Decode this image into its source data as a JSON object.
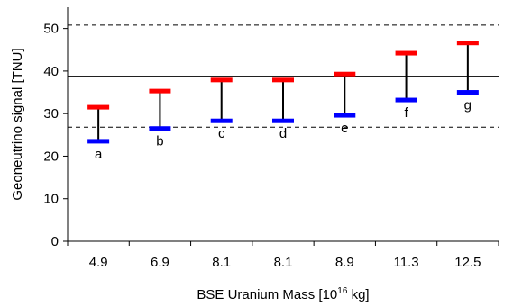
{
  "chart_data": {
    "type": "range-bar",
    "ylabel": "Geoneutrino signal [TNU]",
    "xlabel_parts": {
      "pre": "BSE Uranium Mass [10",
      "sup": "16",
      "post": " kg]"
    },
    "ylim": [
      0,
      55
    ],
    "yticks": [
      "0",
      "10",
      "20",
      "30",
      "40",
      "50"
    ],
    "categories": [
      "4.9",
      "6.9",
      "8.1",
      "8.1",
      "8.9",
      "11.3",
      "12.5"
    ],
    "labels": [
      "a",
      "b",
      "c",
      "d",
      "e",
      "f",
      "g"
    ],
    "low": [
      23.5,
      26.5,
      28.3,
      28.3,
      29.6,
      33.2,
      35.0
    ],
    "high": [
      31.5,
      35.3,
      37.9,
      37.9,
      39.3,
      44.2,
      46.6
    ],
    "reference_lines": [
      {
        "value": 38.8,
        "style": "solid"
      },
      {
        "value": 50.8,
        "style": "dashed"
      },
      {
        "value": 26.8,
        "style": "dashed"
      }
    ],
    "colors": {
      "high": "#ff0000",
      "low": "#0000ff",
      "stem": "#000000"
    }
  }
}
